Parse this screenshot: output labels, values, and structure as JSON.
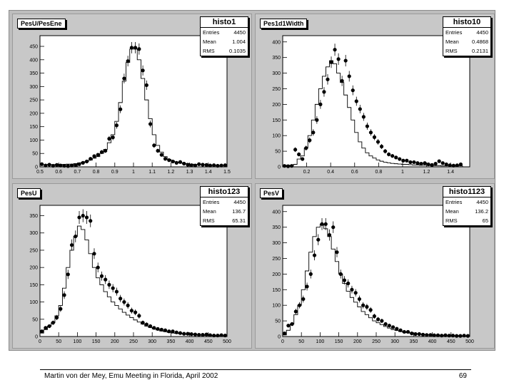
{
  "footer": {
    "text": "Martin von der Mey, Emu Meeting in Florida, April 2002",
    "page": "69"
  },
  "chart_data": [
    {
      "type": "histogram",
      "title": "PesU/PesEne",
      "stats": {
        "name": "histo1",
        "entries": "4450",
        "mean": "1.004",
        "rms": "0.1035"
      },
      "xlim": [
        0.5,
        1.5
      ],
      "ylim": [
        0,
        490
      ],
      "xticks": [
        0.5,
        0.6,
        0.7,
        0.8,
        0.9,
        1,
        1.1,
        1.2,
        1.3,
        1.4,
        1.5
      ],
      "yticks": [
        0,
        50,
        100,
        150,
        200,
        250,
        300,
        350,
        400,
        450
      ],
      "x": [
        0.51,
        0.53,
        0.55,
        0.57,
        0.59,
        0.61,
        0.63,
        0.65,
        0.67,
        0.69,
        0.71,
        0.73,
        0.75,
        0.77,
        0.79,
        0.81,
        0.83,
        0.85,
        0.87,
        0.89,
        0.91,
        0.93,
        0.95,
        0.97,
        0.99,
        1.01,
        1.03,
        1.05,
        1.07,
        1.09,
        1.11,
        1.13,
        1.15,
        1.17,
        1.19,
        1.21,
        1.23,
        1.25,
        1.27,
        1.29,
        1.31,
        1.33,
        1.35,
        1.37,
        1.39,
        1.41,
        1.43,
        1.45,
        1.47,
        1.49
      ],
      "series": [
        {
          "name": "histogram",
          "values": [
            8,
            8,
            9,
            8,
            9,
            9,
            9,
            10,
            10,
            12,
            14,
            17,
            20,
            25,
            32,
            38,
            50,
            65,
            90,
            120,
            170,
            240,
            320,
            390,
            440,
            440,
            400,
            330,
            250,
            180,
            120,
            80,
            55,
            38,
            28,
            22,
            18,
            15,
            13,
            12,
            10,
            9,
            8,
            8,
            7,
            6,
            6,
            5,
            5,
            5
          ]
        },
        {
          "name": "points",
          "values": [
            10,
            5,
            8,
            4,
            7,
            5,
            4,
            3,
            5,
            6,
            10,
            15,
            20,
            30,
            40,
            45,
            55,
            60,
            105,
            110,
            155,
            215,
            330,
            395,
            445,
            445,
            440,
            360,
            305,
            160,
            80,
            60,
            45,
            30,
            25,
            20,
            15,
            18,
            12,
            8,
            6,
            5,
            10,
            8,
            7,
            5,
            6,
            4,
            5,
            6
          ]
        }
      ]
    },
    {
      "type": "histogram",
      "title": "Pes1d1Width",
      "stats": {
        "name": "histo10",
        "entries": "4450",
        "mean": "0.4868",
        "rms": "0.2131"
      },
      "xlim": [
        0,
        1.56
      ],
      "ylim": [
        0,
        420
      ],
      "xticks": [
        0.2,
        0.4,
        0.6,
        0.8,
        1,
        1.2,
        1.4
      ],
      "yticks": [
        0,
        50,
        100,
        150,
        200,
        250,
        300,
        350,
        400
      ],
      "x": [
        0.015,
        0.045,
        0.075,
        0.105,
        0.135,
        0.165,
        0.195,
        0.225,
        0.255,
        0.285,
        0.315,
        0.345,
        0.375,
        0.405,
        0.435,
        0.465,
        0.495,
        0.525,
        0.555,
        0.585,
        0.615,
        0.645,
        0.675,
        0.705,
        0.735,
        0.765,
        0.795,
        0.825,
        0.855,
        0.885,
        0.915,
        0.945,
        0.975,
        1.005,
        1.035,
        1.065,
        1.095,
        1.125,
        1.155,
        1.185,
        1.215,
        1.245,
        1.275,
        1.305,
        1.335,
        1.365,
        1.395,
        1.425,
        1.455,
        1.485
      ],
      "series": [
        {
          "name": "histogram",
          "values": [
            5,
            5,
            4,
            8,
            25,
            35,
            60,
            100,
            150,
            200,
            250,
            290,
            320,
            340,
            330,
            300,
            270,
            230,
            190,
            150,
            110,
            80,
            60,
            45,
            35,
            28,
            22,
            18,
            15,
            13,
            11,
            10,
            9,
            8,
            8,
            7,
            6,
            6,
            5,
            5,
            5,
            4,
            4,
            4,
            3,
            3,
            3,
            3,
            3,
            3
          ]
        },
        {
          "name": "points",
          "values": [
            3,
            2,
            3,
            55,
            40,
            25,
            60,
            85,
            110,
            150,
            200,
            240,
            280,
            335,
            375,
            345,
            275,
            340,
            290,
            245,
            210,
            185,
            160,
            130,
            110,
            95,
            80,
            65,
            50,
            40,
            35,
            30,
            25,
            20,
            20,
            15,
            15,
            12,
            10,
            12,
            8,
            6,
            10,
            18,
            12,
            8,
            5,
            4,
            5,
            8
          ]
        }
      ]
    },
    {
      "type": "histogram",
      "title": "PesU",
      "stats": {
        "name": "histo123",
        "entries": "4450",
        "mean": "136.7",
        "rms": "65.31"
      },
      "xlim": [
        0,
        500
      ],
      "ylim": [
        0,
        380
      ],
      "xticks": [
        0,
        50,
        100,
        150,
        200,
        250,
        300,
        350,
        400,
        450,
        500
      ],
      "yticks": [
        0,
        50,
        100,
        150,
        200,
        250,
        300,
        350
      ],
      "x": [
        5,
        15,
        25,
        35,
        45,
        55,
        65,
        75,
        85,
        95,
        105,
        115,
        125,
        135,
        145,
        155,
        165,
        175,
        185,
        195,
        205,
        215,
        225,
        235,
        245,
        255,
        265,
        275,
        285,
        295,
        305,
        315,
        325,
        335,
        345,
        355,
        365,
        375,
        385,
        395,
        405,
        415,
        425,
        435,
        445,
        455,
        465,
        475,
        485,
        495
      ],
      "series": [
        {
          "name": "histogram",
          "values": [
            10,
            20,
            30,
            40,
            60,
            90,
            140,
            200,
            250,
            290,
            320,
            310,
            280,
            240,
            200,
            170,
            150,
            130,
            115,
            100,
            90,
            80,
            70,
            62,
            55,
            48,
            42,
            36,
            30,
            26,
            22,
            19,
            16,
            14,
            12,
            10,
            9,
            8,
            7,
            6,
            5,
            5,
            4,
            4,
            3,
            3,
            3,
            2,
            2,
            2
          ]
        },
        {
          "name": "points",
          "values": [
            15,
            25,
            30,
            40,
            55,
            80,
            120,
            180,
            265,
            290,
            345,
            350,
            345,
            335,
            240,
            200,
            175,
            165,
            150,
            140,
            130,
            110,
            100,
            90,
            75,
            70,
            60,
            40,
            35,
            30,
            25,
            22,
            20,
            18,
            15,
            15,
            12,
            10,
            8,
            8,
            7,
            6,
            5,
            5,
            6,
            4,
            3,
            3,
            4,
            3
          ]
        }
      ]
    },
    {
      "type": "histogram",
      "title": "PesV",
      "stats": {
        "name": "histo1123",
        "entries": "4450",
        "mean": "136.2",
        "rms": "65"
      },
      "xlim": [
        0,
        500
      ],
      "ylim": [
        0,
        420
      ],
      "xticks": [
        0,
        50,
        100,
        150,
        200,
        250,
        300,
        350,
        400,
        450,
        500
      ],
      "yticks": [
        0,
        50,
        100,
        150,
        200,
        250,
        300,
        350,
        400
      ],
      "x": [
        5,
        15,
        25,
        35,
        45,
        55,
        65,
        75,
        85,
        95,
        105,
        115,
        125,
        135,
        145,
        155,
        165,
        175,
        185,
        195,
        205,
        215,
        225,
        235,
        245,
        255,
        265,
        275,
        285,
        295,
        305,
        315,
        325,
        335,
        345,
        355,
        365,
        375,
        385,
        395,
        405,
        415,
        425,
        435,
        445,
        455,
        465,
        475,
        485,
        495
      ],
      "series": [
        {
          "name": "histogram",
          "values": [
            5,
            20,
            40,
            70,
            100,
            150,
            210,
            270,
            320,
            350,
            360,
            345,
            320,
            280,
            240,
            200,
            170,
            145,
            125,
            110,
            95,
            80,
            70,
            60,
            50,
            44,
            38,
            32,
            27,
            22,
            19,
            16,
            14,
            12,
            10,
            9,
            8,
            7,
            6,
            5,
            5,
            4,
            4,
            3,
            3,
            3,
            3,
            2,
            2,
            2
          ]
        },
        {
          "name": "points",
          "values": [
            10,
            35,
            40,
            80,
            100,
            120,
            160,
            200,
            260,
            310,
            360,
            360,
            325,
            350,
            270,
            200,
            180,
            170,
            150,
            140,
            120,
            100,
            95,
            85,
            65,
            55,
            50,
            40,
            35,
            30,
            25,
            20,
            15,
            15,
            10,
            8,
            8,
            6,
            5,
            5,
            4,
            4,
            3,
            4,
            3,
            3,
            2,
            2,
            3,
            2
          ]
        }
      ]
    }
  ]
}
